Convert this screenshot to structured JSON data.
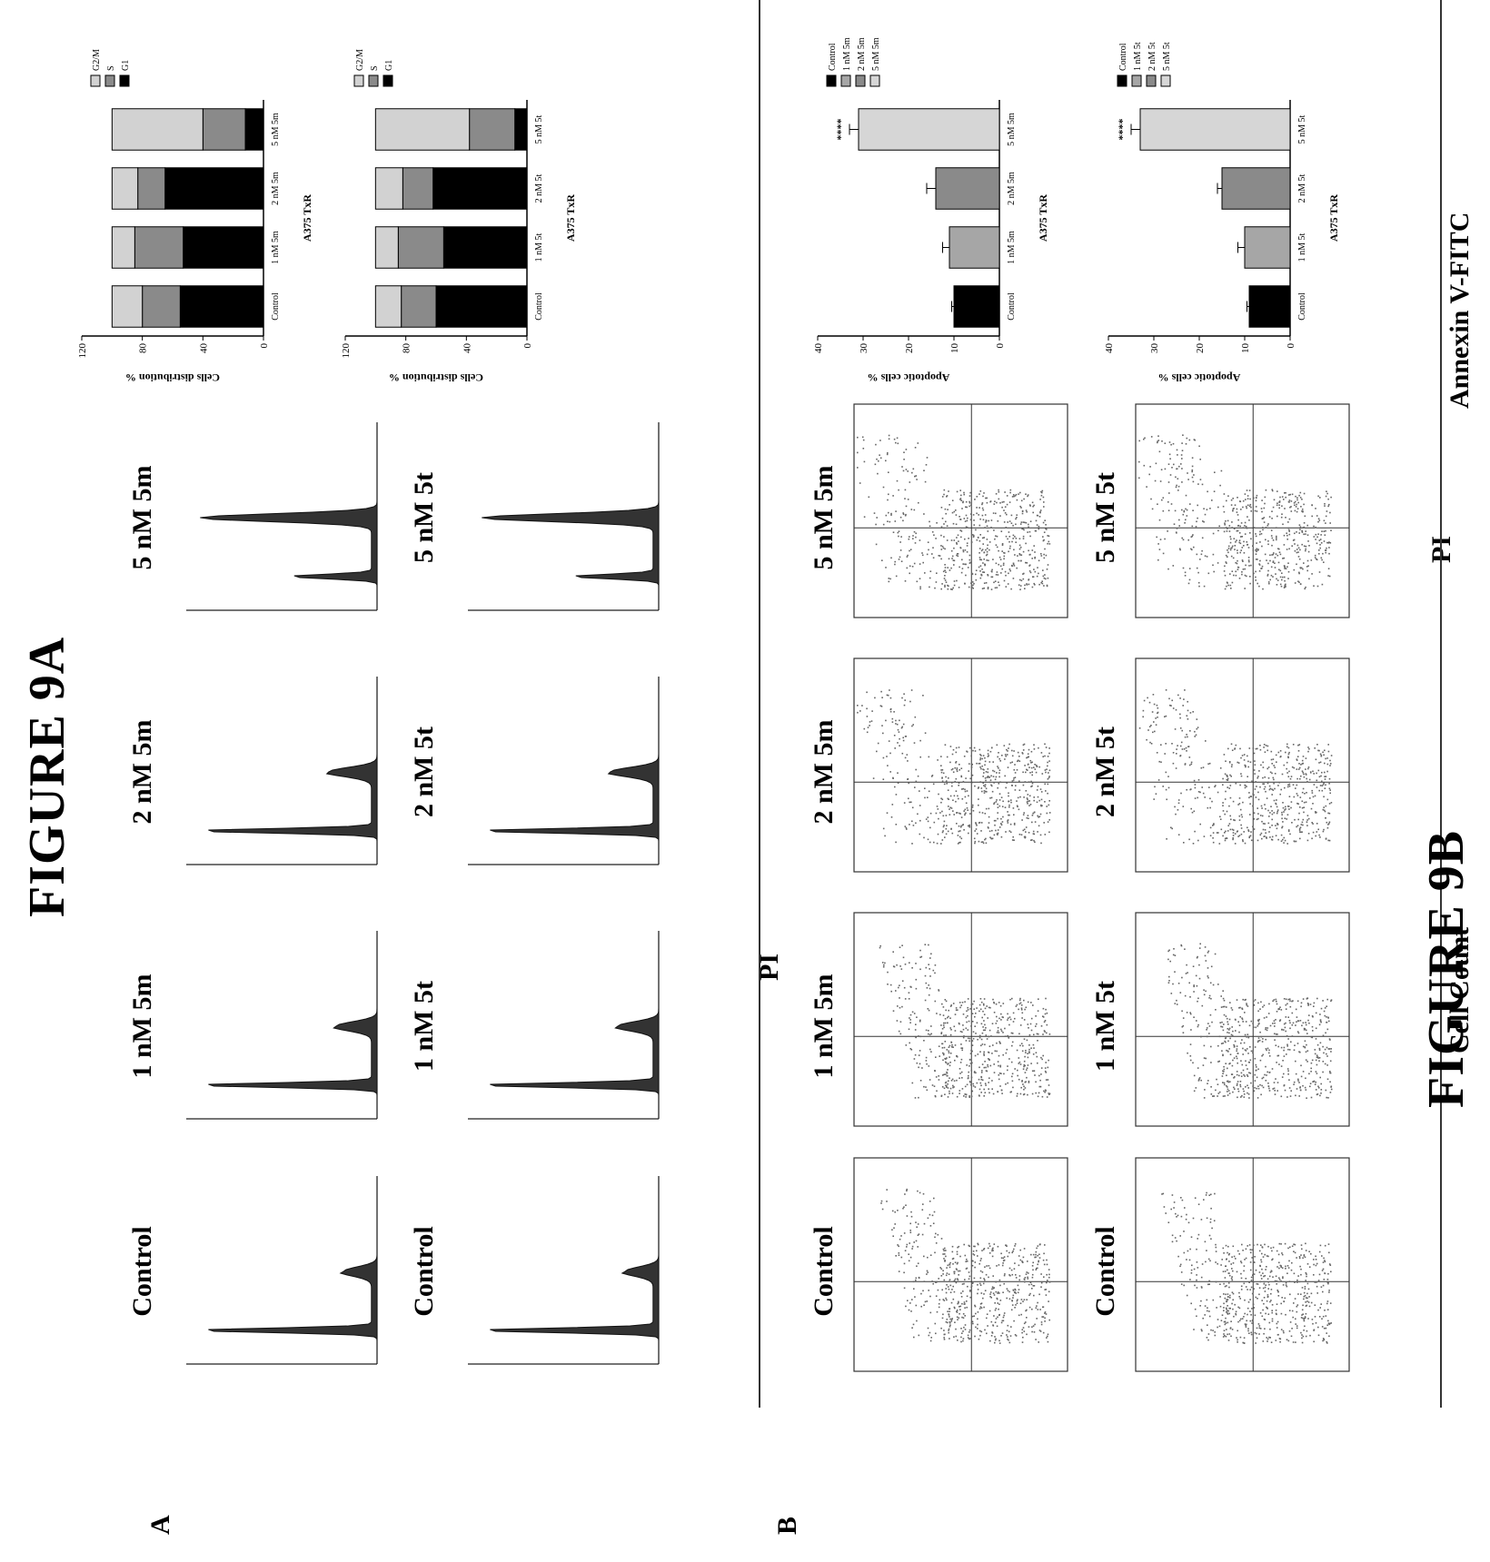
{
  "figure": {
    "title_top": "FIGURE 9A",
    "title_bottom": "FIGURE 9B",
    "panel_a": "A",
    "panel_b": "B",
    "axis_a_y": "Cell Count",
    "axis_a_x": "PI",
    "axis_b_y": "Annexin V-FITC",
    "axis_b_x": "PI"
  },
  "conditions_row1": [
    "Control",
    "1 nM 5m",
    "2 nM 5m",
    "5 nM 5m"
  ],
  "conditions_row2": [
    "Control",
    "1 nM 5t",
    "2 nM 5t",
    "5 nM 5t"
  ],
  "colors": {
    "g1": "#000000",
    "s": "#8a8a8a",
    "g2m": "#d2d2d2",
    "control": "#000000",
    "c1": "#a6a6a6",
    "c2": "#8a8a8a",
    "c5": "#d6d6d6"
  },
  "chart_data": [
    {
      "type": "bar",
      "subtype": "stacked-100",
      "title": "A375 TxR",
      "ylabel": "Cells distribution %",
      "ylim": [
        0,
        120
      ],
      "yticks": [
        "0",
        "40",
        "80",
        "120"
      ],
      "categories": [
        "Control",
        "1 nM 5m",
        "2 nM 5m",
        "5 nM 5m"
      ],
      "series": [
        {
          "name": "G1",
          "values": [
            55,
            53,
            65,
            12
          ]
        },
        {
          "name": "S",
          "values": [
            25,
            32,
            18,
            28
          ]
        },
        {
          "name": "G2/M",
          "values": [
            20,
            15,
            17,
            60
          ]
        }
      ],
      "legend": "right"
    },
    {
      "type": "bar",
      "subtype": "stacked-100",
      "title": "A375 TxR",
      "ylabel": "Cells distribution %",
      "ylim": [
        0,
        120
      ],
      "yticks": [
        "0",
        "40",
        "80",
        "120"
      ],
      "categories": [
        "Control",
        "1 nM 5t",
        "2 nM 5t",
        "5 nM 5t"
      ],
      "series": [
        {
          "name": "G1",
          "values": [
            60,
            55,
            62,
            8
          ]
        },
        {
          "name": "S",
          "values": [
            23,
            30,
            20,
            30
          ]
        },
        {
          "name": "G2/M",
          "values": [
            17,
            15,
            18,
            62
          ]
        }
      ],
      "legend": "right"
    },
    {
      "type": "bar",
      "title": "A375 TxR",
      "ylabel": "Apoptotic cells %",
      "ylim": [
        0,
        40
      ],
      "yticks": [
        "0",
        "10",
        "20",
        "30",
        "40"
      ],
      "categories": [
        "Control",
        "1 nM 5m",
        "2 nM 5m",
        "5 nM 5m"
      ],
      "values": [
        10,
        11,
        14,
        31
      ],
      "errors": [
        0.5,
        1.5,
        2,
        2
      ],
      "annotations": [
        "",
        "",
        "",
        "****"
      ],
      "legend": "right"
    },
    {
      "type": "bar",
      "title": "A375 TxR",
      "ylabel": "Apoptotic cells %",
      "ylim": [
        0,
        40
      ],
      "yticks": [
        "0",
        "10",
        "20",
        "30",
        "40"
      ],
      "categories": [
        "Control",
        "1 nM 5t",
        "2 nM 5t",
        "5 nM 5t"
      ],
      "values": [
        9,
        10,
        15,
        33
      ],
      "errors": [
        0.5,
        1.5,
        1,
        2
      ],
      "annotations": [
        "",
        "",
        "",
        "****"
      ],
      "legend": "right"
    }
  ]
}
